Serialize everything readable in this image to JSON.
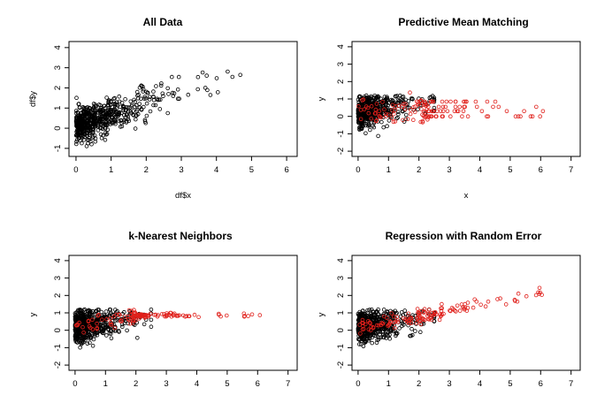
{
  "colors": {
    "observed": "#000000",
    "imputed": "#e0201b"
  },
  "chart_data": [
    {
      "type": "scatter",
      "title": "All Data",
      "xlabel": "df$x",
      "ylabel": "df$y",
      "xlim": [
        -0.2,
        6.3
      ],
      "ylim": [
        -1.4,
        4.3
      ],
      "xticks": [
        0,
        1,
        2,
        3,
        4,
        5,
        6
      ],
      "yticks": [
        -1,
        0,
        1,
        2,
        3,
        4
      ],
      "series": [
        {
          "color": "#000000",
          "marker": "open-circle",
          "pattern": {
            "kind": "observed",
            "n": 620,
            "slope": 0.55,
            "intercept": 0.12,
            "noise": 0.45,
            "xmax": 6.2
          }
        }
      ]
    },
    {
      "type": "scatter",
      "title": "Predictive Mean Matching",
      "xlabel": "x",
      "ylabel": "y",
      "xlim": [
        -0.2,
        7.3
      ],
      "ylim": [
        -2.3,
        4.3
      ],
      "xticks": [
        0,
        1,
        2,
        3,
        4,
        5,
        6,
        7
      ],
      "yticks": [
        -2,
        -1,
        0,
        1,
        2,
        3,
        4
      ],
      "series": [
        {
          "color": "#000000",
          "marker": "open-circle",
          "pattern": {
            "kind": "censored",
            "n": 560,
            "xmax": 2.5,
            "ymax": 1.2,
            "slope": 0.3,
            "intercept": 0.2,
            "noise": 0.45
          }
        },
        {
          "color": "#e0201b",
          "marker": "open-circle",
          "pattern": {
            "kind": "pmm",
            "n": 140,
            "xmax": 6.1,
            "levels": [
              0.0,
              0.3,
              0.55,
              0.85
            ]
          }
        }
      ]
    },
    {
      "type": "scatter",
      "title": "k-Nearest Neighbors",
      "xlabel": "",
      "ylabel": "y",
      "xlim": [
        -0.2,
        7.3
      ],
      "ylim": [
        -2.3,
        4.3
      ],
      "xticks": [
        0,
        1,
        2,
        3,
        4,
        5,
        6,
        7
      ],
      "yticks": [
        -2,
        -1,
        0,
        1,
        2,
        3,
        4
      ],
      "series": [
        {
          "color": "#000000",
          "marker": "open-circle",
          "pattern": {
            "kind": "censored",
            "n": 560,
            "xmax": 2.5,
            "ymax": 1.2,
            "slope": 0.3,
            "intercept": 0.2,
            "noise": 0.45
          }
        },
        {
          "color": "#e0201b",
          "marker": "open-circle",
          "pattern": {
            "kind": "knn",
            "n": 140,
            "xmax": 6.1,
            "level": 0.85
          }
        }
      ]
    },
    {
      "type": "scatter",
      "title": "Regression with Random Error",
      "xlabel": "",
      "ylabel": "y",
      "xlim": [
        -0.2,
        7.3
      ],
      "ylim": [
        -2.3,
        4.3
      ],
      "xticks": [
        0,
        1,
        2,
        3,
        4,
        5,
        6,
        7
      ],
      "yticks": [
        -2,
        -1,
        0,
        1,
        2,
        3,
        4
      ],
      "series": [
        {
          "color": "#000000",
          "marker": "open-circle",
          "pattern": {
            "kind": "censored",
            "n": 560,
            "xmax": 2.5,
            "ymax": 1.2,
            "slope": 0.3,
            "intercept": 0.2,
            "noise": 0.45
          }
        },
        {
          "color": "#e0201b",
          "marker": "open-circle",
          "pattern": {
            "kind": "regression",
            "n": 140,
            "xmax": 6.1,
            "slope": 0.32,
            "intercept": 0.15,
            "noise": 0.18
          }
        }
      ]
    }
  ]
}
